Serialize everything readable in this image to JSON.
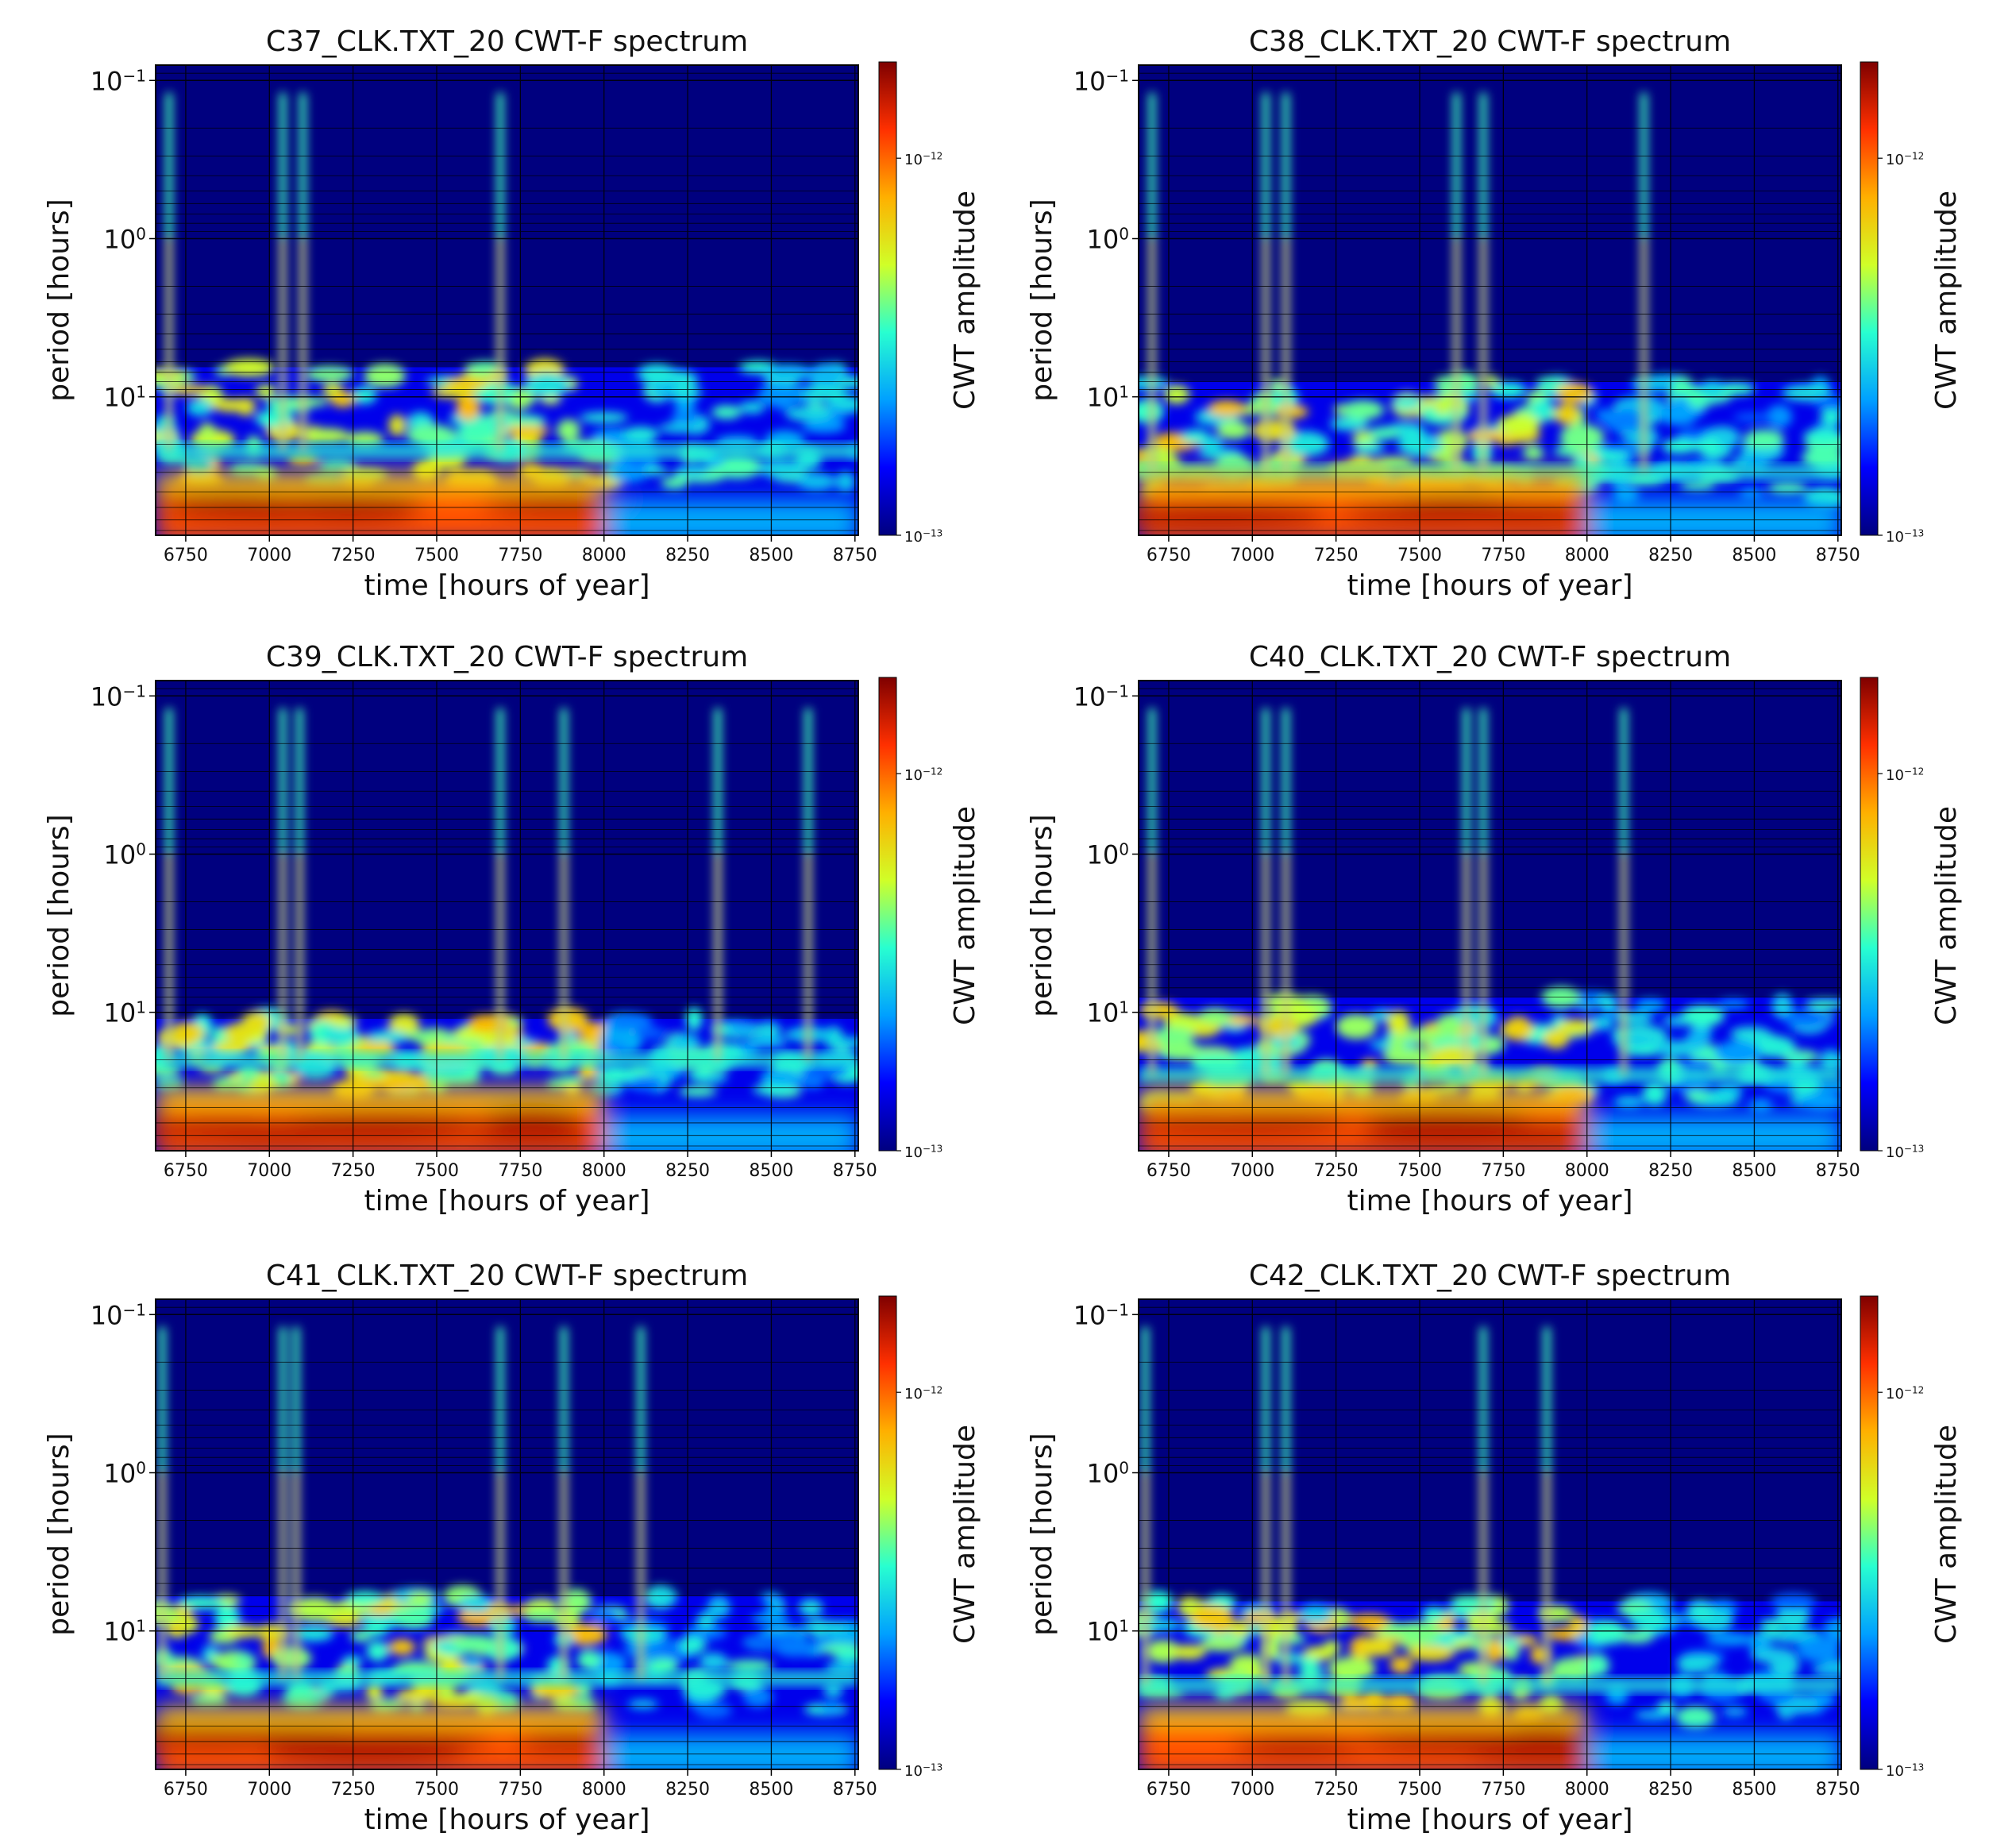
{
  "figure": {
    "background": "#ffffff",
    "colormap": "jet",
    "colormap_stops": [
      "#00007f",
      "#0000ff",
      "#00a0ff",
      "#28ffd0",
      "#d0ff28",
      "#ffb000",
      "#ff3000",
      "#7f0000"
    ]
  },
  "chart_data": [
    {
      "type": "heatmap",
      "title": "C37_CLK.TXT_20  CWT-F spectrum",
      "xlabel": "time [hours of year]",
      "ylabel": "period [hours]",
      "colorbar_label": "CWT amplitude",
      "x_ticks": [
        "6750",
        "7000",
        "7250",
        "7500",
        "7750",
        "8000",
        "8250",
        "8500",
        "8750"
      ],
      "xlim": [
        6660,
        8760
      ],
      "y_ticks": [
        {
          "base": "10",
          "exp": "−1"
        },
        {
          "base": "10",
          "exp": "0"
        },
        {
          "base": "10",
          "exp": "1"
        }
      ],
      "y_scale": "log",
      "y_inverted": true,
      "ylim": [
        0.08,
        75
      ],
      "cbar_ticks": [
        {
          "base": "10",
          "exp": "−12"
        },
        {
          "base": "10",
          "exp": "−13"
        }
      ],
      "clim": [
        1e-13,
        1.8e-12
      ],
      "horizontal_band_period": 6.5,
      "spikes_hours": [
        6700,
        7040,
        7100,
        7690
      ],
      "red_band_end_hour": 8000,
      "mid_band_period": 22
    },
    {
      "type": "heatmap",
      "title": "C38_CLK.TXT_20  CWT-F spectrum",
      "xlabel": "time [hours of year]",
      "ylabel": "period [hours]",
      "colorbar_label": "CWT amplitude",
      "x_ticks": [
        "6750",
        "7000",
        "7250",
        "7500",
        "7750",
        "8000",
        "8250",
        "8500",
        "8750"
      ],
      "xlim": [
        6660,
        8760
      ],
      "y_ticks": [
        {
          "base": "10",
          "exp": "−1"
        },
        {
          "base": "10",
          "exp": "0"
        },
        {
          "base": "10",
          "exp": "1"
        }
      ],
      "y_scale": "log",
      "y_inverted": true,
      "ylim": [
        0.08,
        75
      ],
      "cbar_ticks": [
        {
          "base": "10",
          "exp": "−12"
        },
        {
          "base": "10",
          "exp": "−13"
        }
      ],
      "clim": [
        1e-13,
        1.8e-12
      ],
      "horizontal_band_period": 8,
      "spikes_hours": [
        6700,
        7040,
        7100,
        7610,
        7690,
        8170
      ],
      "red_band_end_hour": 8000,
      "mid_band_period": 30
    },
    {
      "type": "heatmap",
      "title": "C39_CLK.TXT_20  CWT-F spectrum",
      "xlabel": "time [hours of year]",
      "ylabel": "period [hours]",
      "colorbar_label": "CWT amplitude",
      "x_ticks": [
        "6750",
        "7000",
        "7250",
        "7500",
        "7750",
        "8000",
        "8250",
        "8500",
        "8750"
      ],
      "xlim": [
        6660,
        8760
      ],
      "y_ticks": [
        {
          "base": "10",
          "exp": "−1"
        },
        {
          "base": "10",
          "exp": "0"
        },
        {
          "base": "10",
          "exp": "1"
        }
      ],
      "y_scale": "log",
      "y_inverted": true,
      "ylim": [
        0.08,
        75
      ],
      "cbar_ticks": [
        {
          "base": "10",
          "exp": "−12"
        },
        {
          "base": "10",
          "exp": "−13"
        }
      ],
      "clim": [
        1e-13,
        1.8e-12
      ],
      "horizontal_band_period": 11,
      "spikes_hours": [
        6700,
        7040,
        7090,
        7690,
        7880,
        8340,
        8610
      ],
      "red_band_end_hour": 8000,
      "mid_band_period": 20
    },
    {
      "type": "heatmap",
      "title": "C40_CLK.TXT_20  CWT-F spectrum",
      "xlabel": "time [hours of year]",
      "ylabel": "period [hours]",
      "colorbar_label": "CWT amplitude",
      "x_ticks": [
        "6750",
        "7000",
        "7250",
        "7500",
        "7750",
        "8000",
        "8250",
        "8500",
        "8750"
      ],
      "xlim": [
        6660,
        8760
      ],
      "y_ticks": [
        {
          "base": "10",
          "exp": "−1"
        },
        {
          "base": "10",
          "exp": "0"
        },
        {
          "base": "10",
          "exp": "1"
        }
      ],
      "y_scale": "log",
      "y_inverted": true,
      "ylim": [
        0.08,
        75
      ],
      "cbar_ticks": [
        {
          "base": "10",
          "exp": "−12"
        },
        {
          "base": "10",
          "exp": "−13"
        }
      ],
      "clim": [
        1e-13,
        1.8e-12
      ],
      "horizontal_band_period": 8,
      "spikes_hours": [
        6700,
        7040,
        7100,
        7640,
        7690,
        8110
      ],
      "red_band_end_hour": 8000,
      "mid_band_period": 25
    },
    {
      "type": "heatmap",
      "title": "C41_CLK.TXT_20  CWT-F spectrum",
      "xlabel": "time [hours of year]",
      "ylabel": "period [hours]",
      "colorbar_label": "CWT amplitude",
      "x_ticks": [
        "6750",
        "7000",
        "7250",
        "7500",
        "7750",
        "8000",
        "8250",
        "8500",
        "8750"
      ],
      "xlim": [
        6660,
        8760
      ],
      "y_ticks": [
        {
          "base": "10",
          "exp": "−1"
        },
        {
          "base": "10",
          "exp": "0"
        },
        {
          "base": "10",
          "exp": "1"
        }
      ],
      "y_scale": "log",
      "y_inverted": true,
      "ylim": [
        0.08,
        75
      ],
      "cbar_ticks": [
        {
          "base": "10",
          "exp": "−12"
        },
        {
          "base": "10",
          "exp": "−13"
        }
      ],
      "clim": [
        1e-13,
        1.8e-12
      ],
      "horizontal_band_period": 6,
      "spikes_hours": [
        6680,
        7040,
        7080,
        7690,
        7880,
        8110
      ],
      "red_band_end_hour": 8000,
      "mid_band_period": 20
    },
    {
      "type": "heatmap",
      "title": "C42_CLK.TXT_20  CWT-F spectrum",
      "xlabel": "time [hours of year]",
      "ylabel": "period [hours]",
      "colorbar_label": "CWT amplitude",
      "x_ticks": [
        "6750",
        "7000",
        "7250",
        "7500",
        "7750",
        "8000",
        "8250",
        "8500",
        "8750"
      ],
      "xlim": [
        6660,
        8760
      ],
      "y_ticks": [
        {
          "base": "10",
          "exp": "−1"
        },
        {
          "base": "10",
          "exp": "0"
        },
        {
          "base": "10",
          "exp": "1"
        }
      ],
      "y_scale": "log",
      "y_inverted": true,
      "ylim": [
        0.08,
        75
      ],
      "cbar_ticks": [
        {
          "base": "10",
          "exp": "−12"
        },
        {
          "base": "10",
          "exp": "−13"
        }
      ],
      "clim": [
        1e-13,
        1.8e-12
      ],
      "horizontal_band_period": 6.5,
      "spikes_hours": [
        6680,
        7040,
        7100,
        7690,
        7880
      ],
      "red_band_end_hour": 8000,
      "mid_band_period": 22
    }
  ]
}
